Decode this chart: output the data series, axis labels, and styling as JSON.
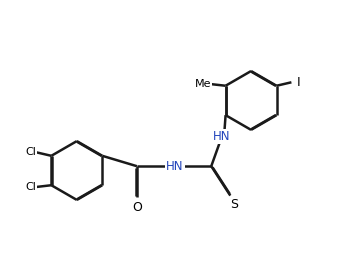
{
  "bg_color": "#ffffff",
  "line_color": "#1a1a1a",
  "bond_width": 1.8,
  "figsize": [
    3.37,
    2.58
  ],
  "dpi": 100,
  "atom_colors": {
    "Cl": "#000000",
    "O": "#000000",
    "S": "#000000",
    "HN": "#2244bb",
    "I": "#000000",
    "Me": "#000000"
  }
}
